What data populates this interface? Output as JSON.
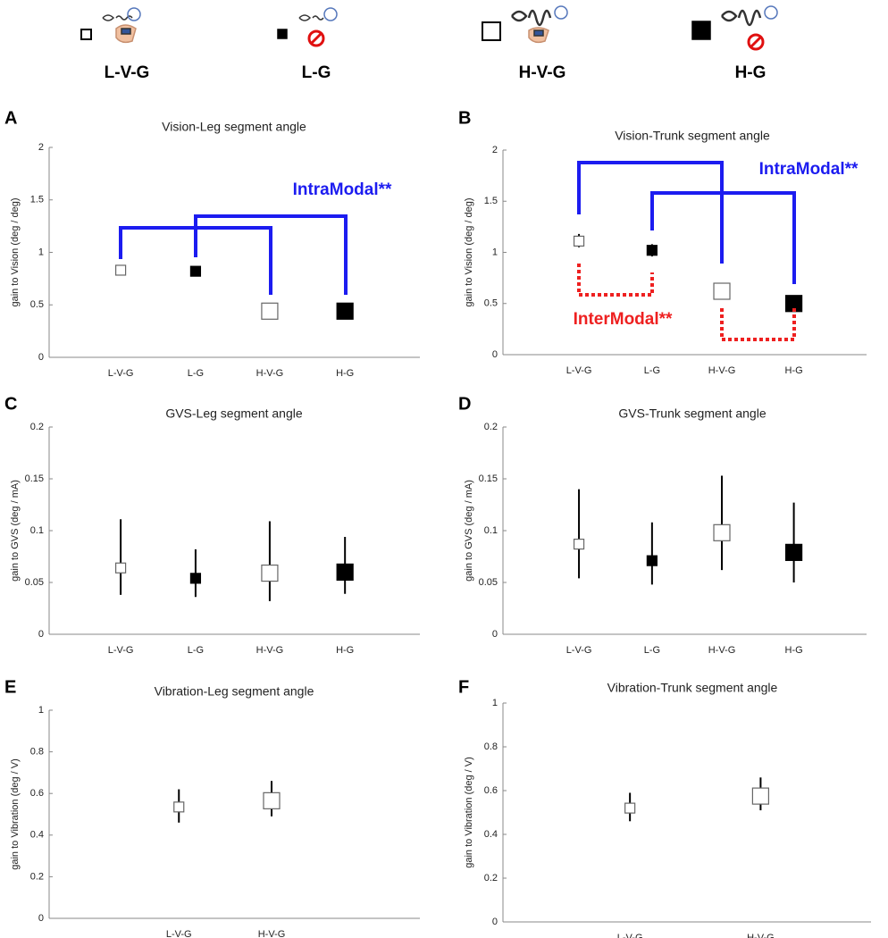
{
  "header": {
    "groups": [
      "L-V-G",
      "L-G",
      "H-V-G",
      "H-G"
    ]
  },
  "chart_data": [
    {
      "type": "errorbar",
      "panel_label": "A",
      "title": "Vision-Leg segment angle",
      "y_label": "gain to Vision (deg / deg)",
      "categories": [
        "L-V-G",
        "L-G",
        "H-V-G",
        "H-G"
      ],
      "values": [
        0.83,
        0.82,
        0.44,
        0.44
      ],
      "err_low": [
        0.78,
        0.8,
        0.42,
        0.42
      ],
      "err_high": [
        0.88,
        0.86,
        0.47,
        0.47
      ],
      "marker_fill": [
        "#ffffff",
        "#000000",
        "#ffffff",
        "#000000"
      ],
      "marker_size": [
        "small",
        "small",
        "large",
        "large"
      ],
      "ylim": [
        0,
        2
      ],
      "yticks": [
        0,
        0.5,
        1,
        1.5,
        2
      ],
      "annotations": [
        {
          "text": "IntraModal**",
          "color": "#1c1cf0"
        }
      ]
    },
    {
      "type": "errorbar",
      "panel_label": "B",
      "title": "Vision-Trunk segment angle",
      "y_label": "gain to Vision (deg / deg)",
      "categories": [
        "L-V-G",
        "L-G",
        "H-V-G",
        "H-G"
      ],
      "values": [
        1.11,
        1.02,
        0.62,
        0.5
      ],
      "err_low": [
        1.05,
        0.96,
        0.58,
        0.47
      ],
      "err_high": [
        1.18,
        1.08,
        0.66,
        0.56
      ],
      "marker_fill": [
        "#ffffff",
        "#000000",
        "#ffffff",
        "#000000"
      ],
      "marker_size": [
        "small",
        "small",
        "large",
        "large"
      ],
      "ylim": [
        0,
        2
      ],
      "yticks": [
        0,
        0.5,
        1,
        1.5,
        2
      ],
      "annotations": [
        {
          "text": "IntraModal**",
          "color": "#1c1cf0"
        },
        {
          "text": "InterModal**",
          "color": "#ee2020"
        }
      ]
    },
    {
      "type": "errorbar",
      "panel_label": "C",
      "title": "GVS-Leg segment angle",
      "y_label": "gain to GVS (deg / mA)",
      "categories": [
        "L-V-G",
        "L-G",
        "H-V-G",
        "H-G"
      ],
      "values": [
        0.064,
        0.054,
        0.059,
        0.06
      ],
      "err_low": [
        0.038,
        0.036,
        0.032,
        0.039
      ],
      "err_high": [
        0.111,
        0.082,
        0.109,
        0.094
      ],
      "marker_fill": [
        "#ffffff",
        "#000000",
        "#ffffff",
        "#000000"
      ],
      "marker_size": [
        "small",
        "small",
        "large",
        "large"
      ],
      "ylim": [
        0,
        0.2
      ],
      "yticks": [
        0,
        0.05,
        0.1,
        0.15,
        0.2
      ]
    },
    {
      "type": "errorbar",
      "panel_label": "D",
      "title": "GVS-Trunk segment angle",
      "y_label": "gain to GVS (deg / mA)",
      "categories": [
        "L-V-G",
        "L-G",
        "H-V-G",
        "H-G"
      ],
      "values": [
        0.087,
        0.071,
        0.098,
        0.079
      ],
      "err_low": [
        0.054,
        0.048,
        0.062,
        0.05
      ],
      "err_high": [
        0.14,
        0.108,
        0.153,
        0.127
      ],
      "marker_fill": [
        "#ffffff",
        "#000000",
        "#ffffff",
        "#000000"
      ],
      "marker_size": [
        "small",
        "small",
        "large",
        "large"
      ],
      "ylim": [
        0,
        0.2
      ],
      "yticks": [
        0,
        0.05,
        0.1,
        0.15,
        0.2
      ]
    },
    {
      "type": "errorbar",
      "panel_label": "E",
      "title": "Vibration-Leg segment angle",
      "y_label": "gain to Vibration (deg / V)",
      "categories": [
        "L-V-G",
        "H-V-G"
      ],
      "values": [
        0.535,
        0.565
      ],
      "err_low": [
        0.46,
        0.49
      ],
      "err_high": [
        0.62,
        0.66
      ],
      "marker_fill": [
        "#ffffff",
        "#ffffff"
      ],
      "marker_size": [
        "small",
        "large"
      ],
      "ylim": [
        0,
        1
      ],
      "yticks": [
        0,
        0.2,
        0.4,
        0.6,
        0.8,
        1
      ]
    },
    {
      "type": "errorbar",
      "panel_label": "F",
      "title": "Vibration-Trunk segment angle",
      "y_label": "gain to Vibration (deg / V)",
      "categories": [
        "L-V-G",
        "H-V-G"
      ],
      "values": [
        0.52,
        0.575
      ],
      "err_low": [
        0.46,
        0.51
      ],
      "err_high": [
        0.59,
        0.66
      ],
      "marker_fill": [
        "#ffffff",
        "#ffffff"
      ],
      "marker_size": [
        "small",
        "large"
      ],
      "ylim": [
        0,
        1
      ],
      "yticks": [
        0,
        0.2,
        0.4,
        0.6,
        0.8,
        1
      ]
    }
  ]
}
